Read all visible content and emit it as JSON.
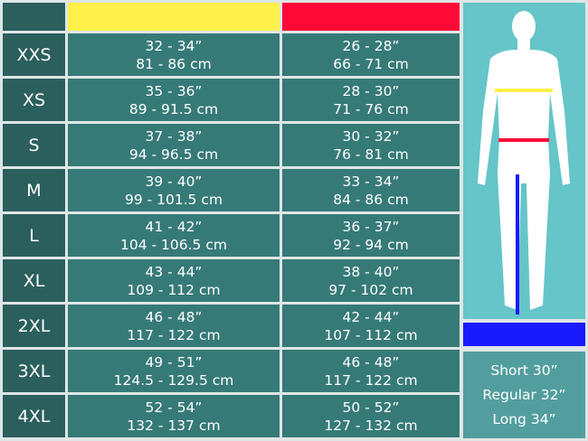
{
  "colors": {
    "chest": "#fff04a",
    "waist": "#ff0a37",
    "inseam": "#1a1aff"
  },
  "rows": [
    {
      "size": "XXS",
      "chest_in": "32 - 34”",
      "chest_cm": "81 - 86 cm",
      "waist_in": "26 - 28”",
      "waist_cm": "66 - 71 cm"
    },
    {
      "size": "XS",
      "chest_in": "35 - 36”",
      "chest_cm": "89 - 91.5 cm",
      "waist_in": "28 - 30”",
      "waist_cm": "71 - 76 cm"
    },
    {
      "size": "S",
      "chest_in": "37 - 38”",
      "chest_cm": "94 - 96.5 cm",
      "waist_in": "30 - 32”",
      "waist_cm": "76 - 81 cm"
    },
    {
      "size": "M",
      "chest_in": "39 - 40”",
      "chest_cm": "99 - 101.5 cm",
      "waist_in": "33 - 34”",
      "waist_cm": "84 - 86 cm"
    },
    {
      "size": "L",
      "chest_in": "41 - 42”",
      "chest_cm": "104 - 106.5 cm",
      "waist_in": "36 - 37”",
      "waist_cm": "92 - 94 cm"
    },
    {
      "size": "XL",
      "chest_in": "43 - 44”",
      "chest_cm": "109 - 112 cm",
      "waist_in": "38 - 40”",
      "waist_cm": "97 - 102 cm"
    },
    {
      "size": "2XL",
      "chest_in": "46 - 48”",
      "chest_cm": "117 - 122 cm",
      "waist_in": "42 - 44”",
      "waist_cm": "107 - 112 cm"
    },
    {
      "size": "3XL",
      "chest_in": "49 - 51”",
      "chest_cm": "124.5 - 129.5 cm",
      "waist_in": "46 - 48”",
      "waist_cm": "117 - 122 cm"
    },
    {
      "size": "4XL",
      "chest_in": "52 - 54”",
      "chest_cm": "132 - 137 cm",
      "waist_in": "50 - 52”",
      "waist_cm": "127 - 132 cm"
    }
  ],
  "inseam": [
    "Short 30”",
    "Regular 32”",
    "Long 34”"
  ]
}
